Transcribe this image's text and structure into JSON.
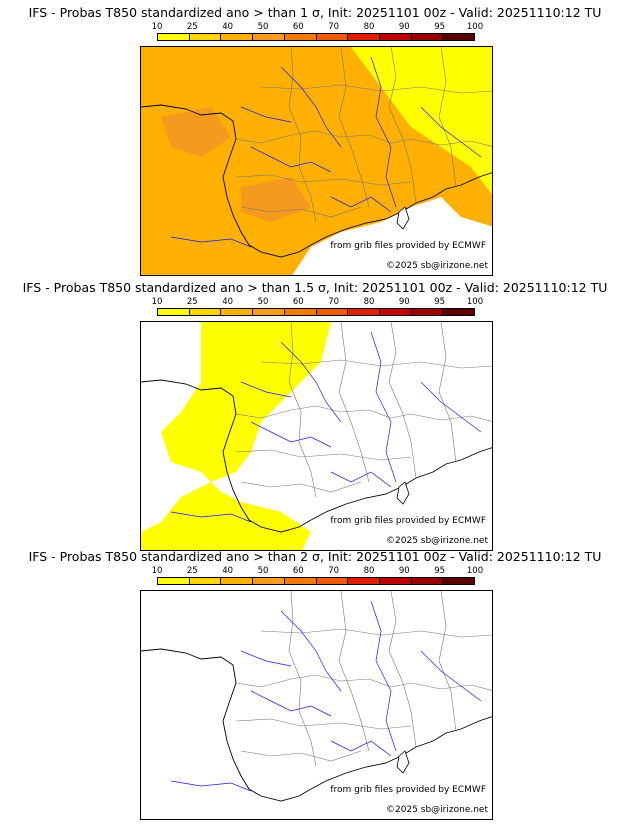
{
  "panels": [
    {
      "title": "IFS - Probas T850  standardized ano > than 1 σ, Init: 20251101 00z - Valid: 20251110:12 TU",
      "fill_level": "high"
    },
    {
      "title": "IFS - Probas T850  standardized ano > than 1.5 σ, Init: 20251101 00z - Valid: 20251110:12 TU",
      "fill_level": "low"
    },
    {
      "title": "IFS - Probas T850  standardized ano > than 2 σ, Init: 20251101 00z - Valid: 20251110:12 TU",
      "fill_level": "none"
    }
  ],
  "colorbar": {
    "ticks": [
      "10",
      "25",
      "40",
      "50",
      "60",
      "70",
      "80",
      "90",
      "95",
      "100"
    ],
    "colors": [
      "#ffff00",
      "#ffd700",
      "#ffb000",
      "#f59a1e",
      "#f07c00",
      "#f45a00",
      "#e01e00",
      "#c00000",
      "#9a0000",
      "#5a0000"
    ]
  },
  "map": {
    "source_note": "from grib files provided by ECMWF",
    "copyright": "©2025 sb@irizone.net"
  },
  "colors": {
    "ocean": "#ffffff",
    "coast": "#000000",
    "borders": "#777777",
    "rivers": "#1a1aff",
    "yellow_fill": "#ffff00",
    "orange_fill": "#ffb000",
    "dark_orange_fill": "#f59a1e"
  }
}
